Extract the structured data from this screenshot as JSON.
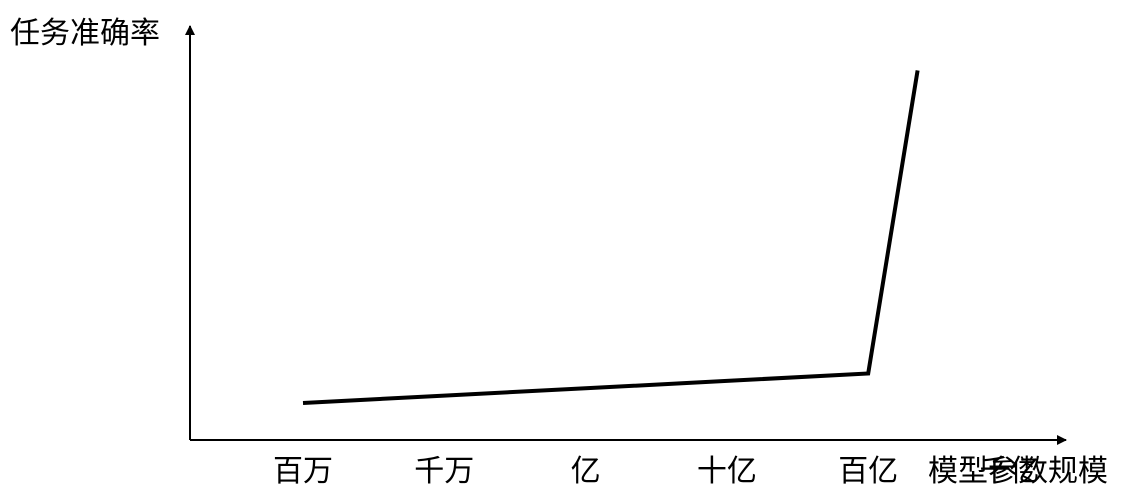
{
  "chart_data": {
    "type": "line",
    "title": "",
    "ylabel": "任务准确率",
    "xlabel": "模型参数规模",
    "categories": [
      "百万",
      "千万",
      "亿",
      "十亿",
      "百亿",
      "千亿"
    ],
    "x": [
      0,
      1,
      2,
      3,
      4,
      4.35
    ],
    "values": [
      0.1,
      0.12,
      0.14,
      0.16,
      0.18,
      1.0
    ],
    "ylim": [
      0,
      1.12
    ],
    "xlim": [
      -0.8,
      5.4
    ],
    "grid": false,
    "legend": "none",
    "line_color": "#000000",
    "axis_color": "#000000"
  }
}
